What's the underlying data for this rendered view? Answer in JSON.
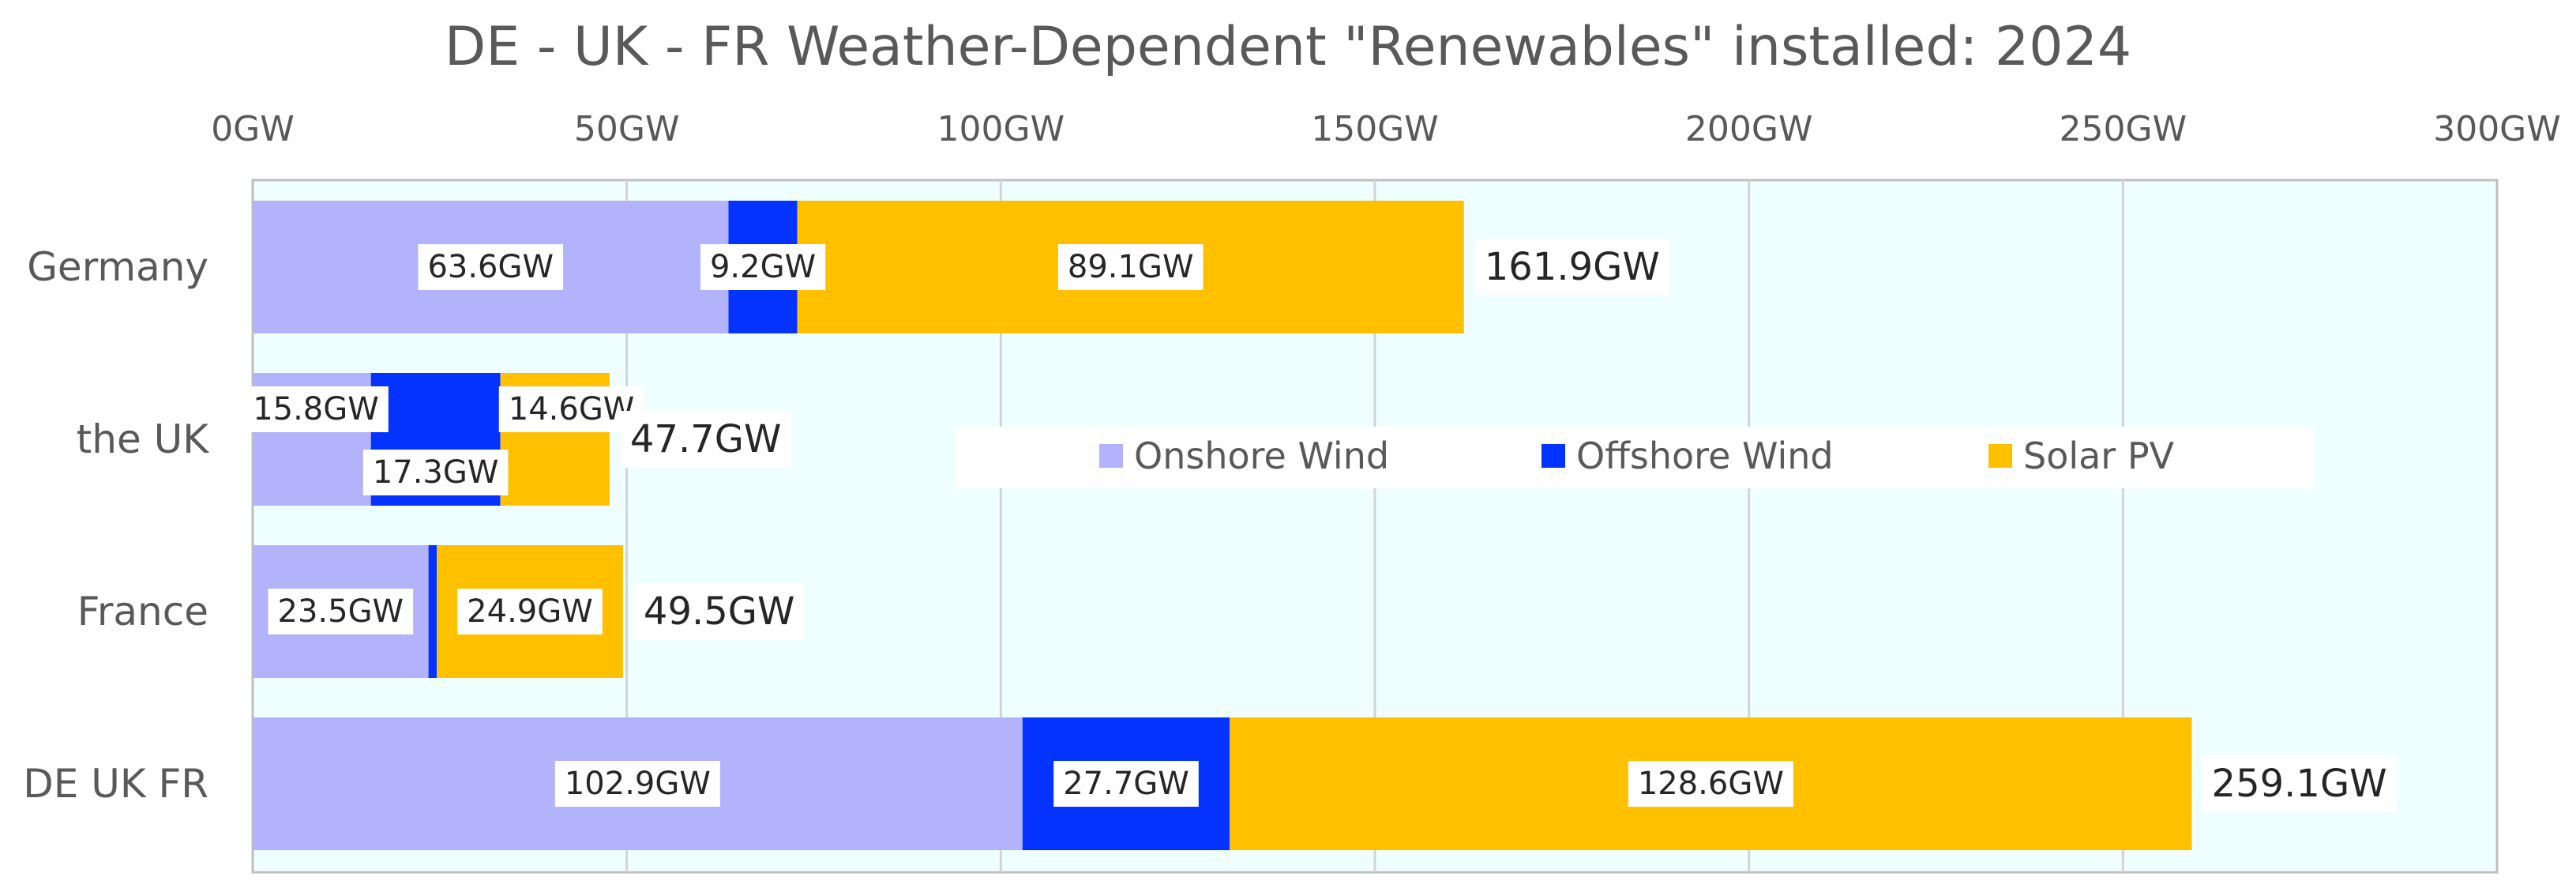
{
  "chart_data": {
    "type": "bar",
    "orientation": "horizontal",
    "stacked": true,
    "title": "DE - UK - FR  Weather-Dependent \"Renewables\" installed:  2024",
    "categories": [
      "Germany",
      "the UK",
      "France",
      "DE UK FR"
    ],
    "series": [
      {
        "name": "Onshore Wind",
        "color": "#b3b3fb",
        "values": [
          63.6,
          15.8,
          23.5,
          102.9
        ],
        "labels": [
          "63.6GW",
          "15.8GW",
          "23.5GW",
          "102.9GW"
        ]
      },
      {
        "name": "Offshore Wind",
        "color": "#0433ff",
        "values": [
          9.2,
          17.3,
          1.1,
          27.7
        ],
        "labels": [
          "9.2GW",
          "17.3GW",
          "",
          "27.7GW"
        ]
      },
      {
        "name": "Solar  PV",
        "color": "#ffc000",
        "values": [
          89.1,
          14.6,
          24.9,
          128.6
        ],
        "labels": [
          "89.1GW",
          "14.6GW",
          "24.9GW",
          "128.6GW"
        ]
      }
    ],
    "totals": [
      "161.9GW",
      "47.7GW",
      "49.5GW",
      "259.1GW"
    ],
    "total_values": [
      161.9,
      47.7,
      49.5,
      259.1
    ],
    "xlim": [
      0,
      300
    ],
    "xticks": [
      0,
      50,
      100,
      150,
      200,
      250,
      300
    ],
    "xtick_labels": [
      "0GW",
      "50GW",
      "100GW",
      "150GW",
      "200GW",
      "250GW",
      "300GW"
    ],
    "xaxis_position": "top",
    "grid": true,
    "plot_background": "#efffff",
    "legend_position": "inside-center"
  }
}
